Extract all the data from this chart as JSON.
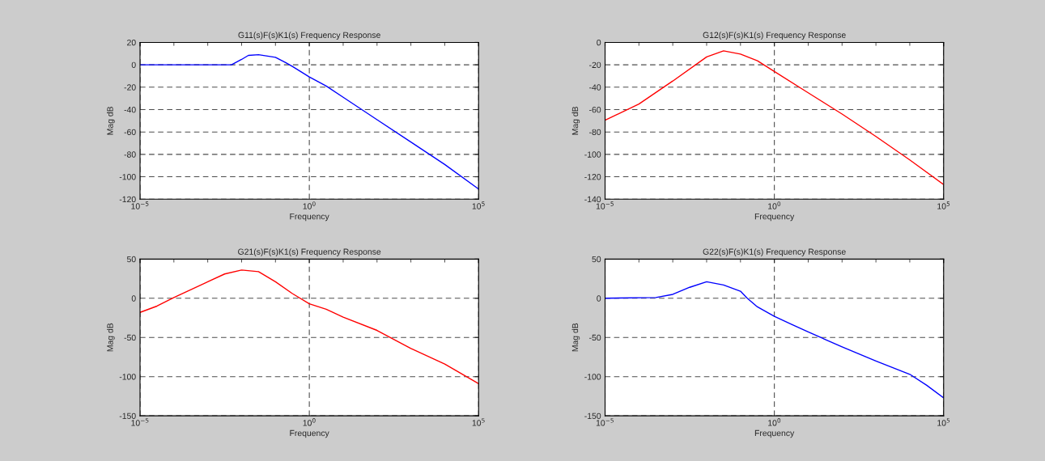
{
  "chart_data": [
    {
      "type": "line",
      "title": "G11(s)F(s)K1(s) Frequency Response",
      "xlabel": "Frequency",
      "ylabel": "Mag dB",
      "log": "x",
      "grid": true,
      "x": [
        1e-05,
        0.001,
        0.005012,
        0.01,
        0.01585,
        0.03162,
        0.1,
        0.1995,
        0.3162,
        1,
        3.162,
        10,
        100,
        1000,
        10000,
        100000
      ],
      "series": [
        {
          "color": "#0000ff",
          "values": [
            0,
            0,
            0,
            4.8,
            8.4,
            9,
            6.7,
            2,
            -1.5,
            -10.9,
            -19,
            -29,
            -49,
            -69,
            -89,
            -111
          ]
        }
      ],
      "xlim": [
        1e-05,
        100000
      ],
      "ylim": [
        -120,
        20
      ],
      "xticks": [
        {
          "value": 1e-05,
          "label": "10$^{−5}$"
        },
        {
          "value": 1,
          "label": "10$^{0}$"
        },
        {
          "value": 100000,
          "label": "10$^{5}$"
        }
      ],
      "yticks": [
        -120,
        -100,
        -80,
        -60,
        -40,
        -20,
        0,
        20
      ]
    },
    {
      "type": "line",
      "title": "G12(s)F(s)K1(s) Frequency Response",
      "xlabel": "Frequency",
      "ylabel": "Mag dB",
      "log": "x",
      "grid": true,
      "x": [
        1e-05,
        0.0001,
        0.001,
        0.01,
        0.03162,
        0.1,
        0.3162,
        1,
        10,
        100,
        1000,
        10000,
        100000
      ],
      "series": [
        {
          "color": "#ff0000",
          "values": [
            -69.5,
            -55,
            -34.5,
            -13,
            -7.5,
            -10.4,
            -16.4,
            -26,
            -45,
            -64,
            -84,
            -105,
            -127
          ]
        }
      ],
      "xlim": [
        1e-05,
        100000
      ],
      "ylim": [
        -140,
        0
      ],
      "xticks": [
        {
          "value": 1e-05,
          "label": "10$^{−5}$"
        },
        {
          "value": 1,
          "label": "10$^{0}$"
        },
        {
          "value": 100000,
          "label": "10$^{5}$"
        }
      ],
      "yticks": [
        -140,
        -120,
        -100,
        -80,
        -60,
        -40,
        -20,
        0
      ]
    },
    {
      "type": "line",
      "title": "G21(s)F(s)K1(s) Frequency Response",
      "xlabel": "Frequency",
      "ylabel": "Mag dB",
      "log": "x",
      "grid": true,
      "x": [
        1e-05,
        3.162e-05,
        0.0001,
        0.001,
        0.003162,
        0.01,
        0.03162,
        0.1,
        0.3162,
        1,
        3.162,
        10,
        100,
        1000,
        10000,
        100000
      ],
      "series": [
        {
          "color": "#ff0000",
          "values": [
            -18,
            -10,
            1,
            21,
            31,
            36,
            34,
            21,
            6,
            -7,
            -14,
            -24,
            -41,
            -64,
            -84,
            -109
          ]
        }
      ],
      "xlim": [
        1e-05,
        100000
      ],
      "ylim": [
        -150,
        50
      ],
      "xticks": [
        {
          "value": 1e-05,
          "label": "10$^{−5}$"
        },
        {
          "value": 1,
          "label": "10$^{0}$"
        },
        {
          "value": 100000,
          "label": "10$^{5}$"
        }
      ],
      "yticks": [
        -150,
        -100,
        -50,
        0,
        50
      ]
    },
    {
      "type": "line",
      "title": "G22(s)F(s)K1(s) Frequency Response",
      "xlabel": "Frequency",
      "ylabel": "Mag dB",
      "log": "x",
      "grid": true,
      "x": [
        1e-05,
        0.0003162,
        0.001,
        0.003162,
        0.01,
        0.03162,
        0.1,
        0.1585,
        0.3162,
        1,
        3.162,
        10,
        100,
        1000,
        10000,
        31623,
        100000
      ],
      "series": [
        {
          "color": "#0000ff",
          "values": [
            0,
            1,
            5,
            14,
            21,
            17,
            9,
            0,
            -11,
            -23,
            -33,
            -43,
            -62,
            -80,
            -97,
            -111,
            -127
          ]
        }
      ],
      "xlim": [
        1e-05,
        100000
      ],
      "ylim": [
        -150,
        50
      ],
      "xticks": [
        {
          "value": 1e-05,
          "label": "10$^{−5}$"
        },
        {
          "value": 1,
          "label": "10$^{0}$"
        },
        {
          "value": 100000,
          "label": "10$^{5}$"
        }
      ],
      "yticks": [
        -150,
        -100,
        -50,
        0,
        50
      ]
    }
  ]
}
